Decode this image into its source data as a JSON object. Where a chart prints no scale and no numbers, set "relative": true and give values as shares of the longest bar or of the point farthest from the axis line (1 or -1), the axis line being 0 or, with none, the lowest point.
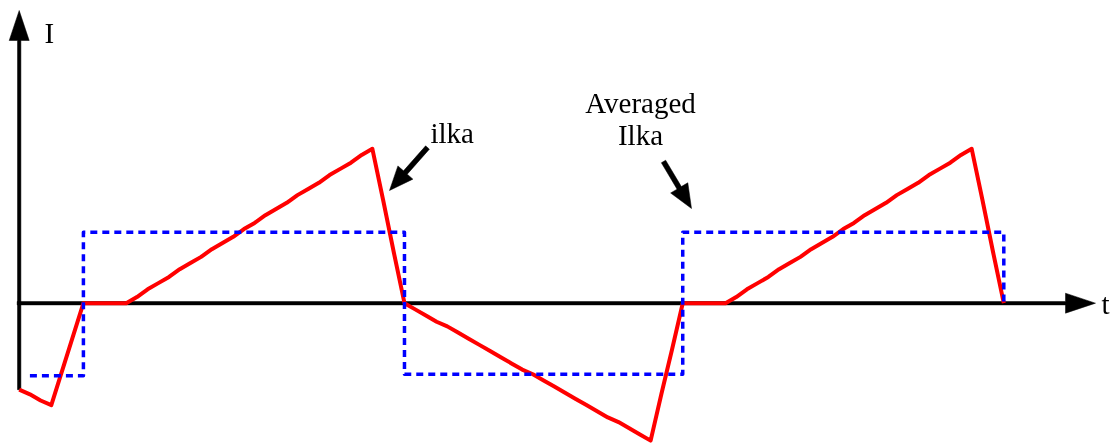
{
  "chart_data": {
    "type": "line",
    "relative": true,
    "tick_labels": false,
    "xlabel": "t",
    "ylabel": "I",
    "categories": [
      null,
      null,
      null,
      null,
      null,
      null,
      null,
      null,
      null,
      null,
      null,
      null,
      null,
      null,
      null,
      null,
      null,
      null,
      null,
      null,
      null,
      null,
      null,
      null,
      null,
      null,
      null,
      null,
      null,
      null,
      null,
      null,
      null,
      null,
      null,
      null,
      null,
      null,
      null,
      null,
      null,
      null,
      null,
      null,
      null,
      null,
      null,
      null,
      null,
      null,
      null,
      null,
      null,
      null,
      null,
      null,
      null,
      null,
      null,
      null,
      null,
      null,
      null,
      null,
      null,
      null,
      null,
      null,
      null,
      null,
      null,
      null,
      null,
      null,
      null,
      null,
      null,
      null,
      null,
      null,
      null,
      null,
      null,
      null,
      null,
      null,
      null,
      null,
      null,
      null,
      null,
      null,
      null
    ],
    "series": [
      {
        "name": "ilka",
        "color": "#ff0000",
        "values": [
          -0.56,
          -0.59,
          -0.63,
          -0.66,
          -0.44,
          -0.22,
          0,
          0,
          0,
          0,
          0,
          0.04,
          0.09,
          0.13,
          0.17,
          0.22,
          0.26,
          0.3,
          0.35,
          0.39,
          0.43,
          0.48,
          0.52,
          0.57,
          0.61,
          0.65,
          0.7,
          0.74,
          0.78,
          0.83,
          0.87,
          0.91,
          0.96,
          1,
          0.67,
          0.33,
          0,
          -0.04,
          -0.08,
          -0.12,
          -0.15,
          -0.19,
          -0.23,
          -0.27,
          -0.31,
          -0.35,
          -0.39,
          -0.43,
          -0.46,
          -0.5,
          -0.54,
          -0.58,
          -0.62,
          -0.66,
          -0.7,
          -0.74,
          -0.77,
          -0.81,
          -0.85,
          -0.89,
          -0.59,
          -0.3,
          0,
          0,
          0,
          0,
          0,
          0.04,
          0.09,
          0.13,
          0.17,
          0.22,
          0.26,
          0.3,
          0.35,
          0.39,
          0.43,
          0.48,
          0.52,
          0.57,
          0.61,
          0.65,
          0.7,
          0.74,
          0.78,
          0.83,
          0.87,
          0.91,
          0.96,
          1,
          0.67,
          0.33,
          0
        ]
      },
      {
        "name": "Averaged Ilka",
        "type": "step",
        "color": "#0000ff",
        "line_style": "dashed",
        "values": [
          null,
          -0.47,
          -0.47,
          -0.47,
          -0.47,
          -0.47,
          0.46,
          0.46,
          0.46,
          0.46,
          0.46,
          0.46,
          0.46,
          0.46,
          0.46,
          0.46,
          0.46,
          0.46,
          0.46,
          0.46,
          0.46,
          0.46,
          0.46,
          0.46,
          0.46,
          0.46,
          0.46,
          0.46,
          0.46,
          0.46,
          0.46,
          0.46,
          0.46,
          0.46,
          0.46,
          0.46,
          -0.46,
          -0.46,
          -0.46,
          -0.46,
          -0.46,
          -0.46,
          -0.46,
          -0.46,
          -0.46,
          -0.46,
          -0.46,
          -0.46,
          -0.46,
          -0.46,
          -0.46,
          -0.46,
          -0.46,
          -0.46,
          -0.46,
          -0.46,
          -0.46,
          -0.46,
          -0.46,
          -0.46,
          -0.46,
          -0.46,
          0.46,
          0.46,
          0.46,
          0.46,
          0.46,
          0.46,
          0.46,
          0.46,
          0.46,
          0.46,
          0.46,
          0.46,
          0.46,
          0.46,
          0.46,
          0.46,
          0.46,
          0.46,
          0.46,
          0.46,
          0.46,
          0.46,
          0.46,
          0.46,
          0.46,
          0.46,
          0.46,
          0.46,
          0.46,
          0.46,
          0
        ]
      }
    ]
  }
}
